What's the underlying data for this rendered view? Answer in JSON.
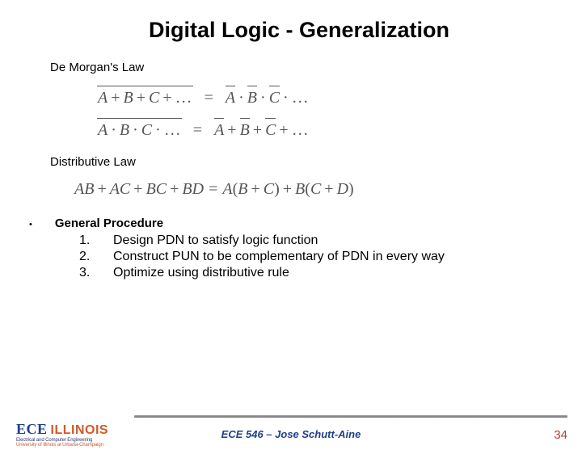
{
  "title": "Digital Logic - Generalization",
  "sections": {
    "demorgan_label": "De Morgan's Law",
    "distributive_label": "Distributive Law"
  },
  "demorgan": {
    "eq1": {
      "lhs_terms": [
        "A",
        "B",
        "C"
      ],
      "lhs_op": "+",
      "lhs_dots": "...",
      "rhs_terms": [
        "A",
        "B",
        "C"
      ],
      "rhs_op": "·",
      "rhs_dots": "..."
    },
    "eq2": {
      "lhs_terms": [
        "A",
        "B",
        "C"
      ],
      "lhs_op": "·",
      "lhs_dots": "...",
      "rhs_terms": [
        "A",
        "B",
        "C"
      ],
      "rhs_op": "+",
      "rhs_dots": "..."
    }
  },
  "distributive": {
    "lhs_pairs": [
      "AB",
      "AC",
      "BC",
      "BD"
    ],
    "rhs": {
      "g1": {
        "outer": "A",
        "inner": [
          "B",
          "C"
        ]
      },
      "g2": {
        "outer": "B",
        "inner": [
          "C",
          "D"
        ]
      }
    }
  },
  "general_procedure": {
    "heading": "General Procedure",
    "steps": [
      "Design PDN to satisfy logic function",
      "Construct PUN to be complementary of PDN in every way",
      "Optimize using distributive rule"
    ],
    "nums": [
      "1.",
      "2.",
      "3."
    ]
  },
  "footer": {
    "course": "ECE 546 – Jose Schutt-Aine",
    "page": "34"
  },
  "logo": {
    "ece": "ECE",
    "illinois": "ILLINOIS",
    "sub1": "Electrical and Computer Engineering",
    "sub2": "University of Illinois at Urbana-Champaign"
  },
  "colors": {
    "title": "#000000",
    "equation": "#555555",
    "course": "#1f3f8b",
    "pagenum": "#c23a28",
    "logo_blue": "#1f3f8b",
    "logo_orange": "#d15a2a",
    "rule": "#8a8a8a",
    "background": "#ffffff"
  },
  "typography": {
    "title_fontsize": 27,
    "body_fontsize": 15,
    "eq_fontsize": 20,
    "footer_fontsize": 13,
    "eq_fontfamily": "Times New Roman"
  }
}
